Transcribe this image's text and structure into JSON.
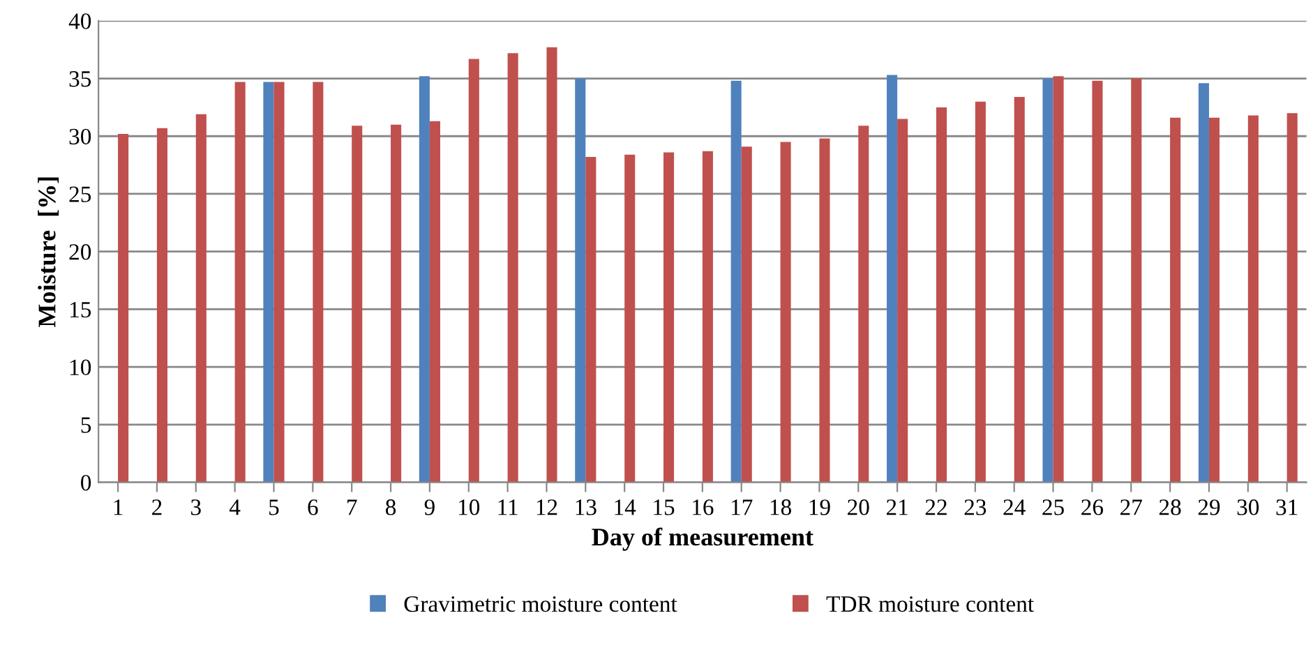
{
  "chart_data": {
    "type": "bar",
    "xlabel": "Day of measurement",
    "ylabel": "Moisture  [%]",
    "categories": [
      "1",
      "2",
      "3",
      "4",
      "5",
      "6",
      "7",
      "8",
      "9",
      "10",
      "11",
      "12",
      "13",
      "14",
      "15",
      "16",
      "17",
      "18",
      "19",
      "20",
      "21",
      "22",
      "23",
      "24",
      "25",
      "26",
      "27",
      "28",
      "29",
      "30",
      "31"
    ],
    "series": [
      {
        "name": "Gravimetric moisture content",
        "color": "#4f81bd",
        "values": [
          null,
          null,
          null,
          null,
          34.7,
          null,
          null,
          null,
          35.2,
          null,
          null,
          null,
          35.0,
          null,
          null,
          null,
          34.8,
          null,
          null,
          null,
          35.3,
          null,
          null,
          null,
          35.0,
          null,
          null,
          null,
          34.6,
          null,
          null
        ]
      },
      {
        "name": "TDR moisture content",
        "color": "#c0504d",
        "values": [
          30.2,
          30.7,
          31.9,
          34.7,
          34.7,
          34.7,
          30.9,
          31.0,
          31.3,
          36.7,
          37.2,
          37.7,
          28.2,
          28.4,
          28.6,
          28.7,
          29.1,
          29.5,
          29.8,
          30.9,
          31.5,
          32.5,
          33.0,
          33.4,
          35.2,
          34.8,
          35.0,
          31.6,
          31.6,
          31.8,
          32.0
        ]
      }
    ],
    "ylim": [
      0,
      40
    ],
    "yticks": [
      0,
      5,
      10,
      15,
      20,
      25,
      30,
      35,
      40
    ],
    "grid": "y",
    "legend": "bottom"
  }
}
